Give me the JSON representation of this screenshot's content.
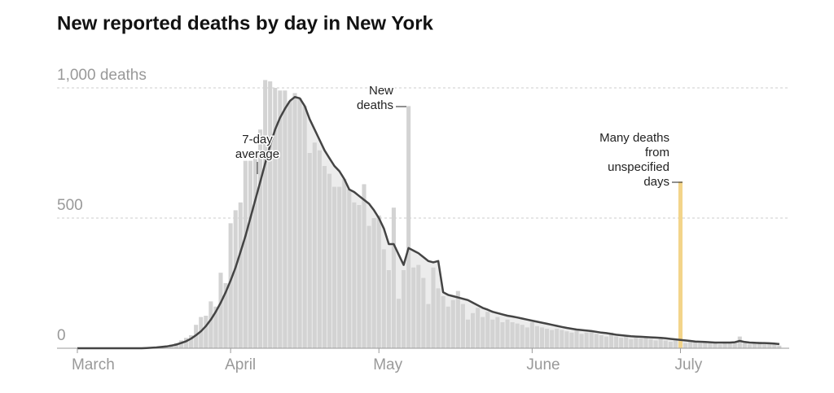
{
  "chart_data": {
    "type": "bar-line",
    "title": "New reported deaths by day in New York",
    "x": [
      0,
      1,
      2,
      3,
      4,
      5,
      6,
      7,
      8,
      9,
      10,
      11,
      12,
      13,
      14,
      15,
      16,
      17,
      18,
      19,
      20,
      21,
      22,
      23,
      24,
      25,
      26,
      27,
      28,
      29,
      30,
      31,
      32,
      33,
      34,
      35,
      36,
      37,
      38,
      39,
      40,
      41,
      42,
      43,
      44,
      45,
      46,
      47,
      48,
      49,
      50,
      51,
      52,
      53,
      54,
      55,
      56,
      57,
      58,
      59,
      60,
      61,
      62,
      63,
      64,
      65,
      66,
      67,
      68,
      69,
      70,
      71,
      72,
      73,
      74,
      75,
      76,
      77,
      78,
      79,
      80,
      81,
      82,
      83,
      84,
      85,
      86,
      87,
      88,
      89,
      90,
      91,
      92,
      93,
      94,
      95,
      96,
      97,
      98,
      99,
      100,
      101,
      102,
      103,
      104,
      105,
      106,
      107,
      108,
      109,
      110,
      111,
      112,
      113,
      114,
      115,
      116,
      117,
      118,
      119,
      120,
      121,
      122,
      123,
      124,
      125,
      126,
      127,
      128,
      129,
      130,
      131,
      132,
      133,
      134,
      135,
      136,
      137,
      138,
      139,
      140,
      141,
      142
    ],
    "xlim": [
      -4,
      144
    ],
    "xticks": [
      {
        "value": 0,
        "label": "March"
      },
      {
        "value": 31,
        "label": "April"
      },
      {
        "value": 61,
        "label": "May"
      },
      {
        "value": 92,
        "label": "June"
      },
      {
        "value": 122,
        "label": "July"
      }
    ],
    "ylim": [
      0,
      1000
    ],
    "yticks": [
      {
        "value": 0,
        "label": "0"
      },
      {
        "value": 500,
        "label": "500"
      },
      {
        "value": 1000,
        "label": "1,000 deaths"
      }
    ],
    "grid": true,
    "series": [
      {
        "type": "bar",
        "color": "#d3d3d3",
        "area_color": "#ececec",
        "values": [
          0,
          0,
          0,
          0,
          0,
          0,
          0,
          0,
          0,
          0,
          0,
          0,
          0,
          0,
          0,
          2,
          3,
          5,
          10,
          15,
          20,
          30,
          40,
          50,
          90,
          120,
          125,
          180,
          160,
          290,
          250,
          480,
          530,
          560,
          720,
          720,
          740,
          840,
          1030,
          1025,
          1000,
          990,
          990,
          950,
          980,
          960,
          930,
          750,
          790,
          760,
          700,
          670,
          620,
          620,
          650,
          610,
          560,
          550,
          630,
          470,
          500,
          510,
          380,
          300,
          540,
          190,
          300,
          930,
          310,
          320,
          270,
          170,
          310,
          230,
          200,
          160,
          185,
          220,
          170,
          110,
          135,
          155,
          120,
          140,
          110,
          120,
          100,
          110,
          100,
          95,
          90,
          80,
          100,
          85,
          80,
          75,
          70,
          75,
          70,
          65,
          60,
          70,
          55,
          60,
          65,
          55,
          50,
          45,
          60,
          45,
          40,
          45,
          35,
          40,
          38,
          45,
          35,
          30,
          40,
          30,
          25,
          30,
          640,
          20,
          30,
          25,
          20,
          25,
          20,
          25,
          15,
          25,
          20,
          25,
          45,
          20,
          15,
          20,
          25,
          15,
          20,
          15,
          10
        ]
      },
      {
        "type": "line",
        "color": "#444444",
        "values": [
          0,
          0,
          0,
          0,
          0,
          0,
          0,
          0,
          0,
          0,
          0,
          0,
          0,
          0,
          1,
          2,
          3,
          5,
          7,
          10,
          14,
          20,
          27,
          37,
          50,
          65,
          85,
          110,
          140,
          175,
          215,
          260,
          310,
          370,
          430,
          500,
          570,
          640,
          710,
          780,
          840,
          885,
          920,
          950,
          965,
          960,
          930,
          880,
          840,
          800,
          760,
          730,
          700,
          680,
          650,
          610,
          600,
          585,
          570,
          555,
          530,
          500,
          460,
          400,
          400,
          360,
          320,
          385,
          375,
          365,
          350,
          335,
          330,
          335,
          215,
          205,
          200,
          195,
          190,
          185,
          175,
          165,
          155,
          148,
          140,
          135,
          130,
          125,
          122,
          118,
          114,
          110,
          106,
          102,
          98,
          94,
          90,
          86,
          82,
          78,
          75,
          72,
          70,
          68,
          66,
          63,
          60,
          58,
          55,
          52,
          50,
          48,
          46,
          45,
          44,
          43,
          42,
          41,
          40,
          38,
          36,
          34,
          32,
          30,
          28,
          26,
          25,
          24,
          23,
          22,
          22,
          22,
          22,
          23,
          28,
          24,
          22,
          21,
          20,
          20,
          19,
          18,
          16
        ]
      }
    ],
    "annotations": [
      {
        "lines": [
          "7-day",
          "average"
        ],
        "x": 36
      },
      {
        "lines": [
          "New",
          "deaths"
        ],
        "x": 67
      },
      {
        "lines": [
          "Many deaths",
          "from",
          "unspecified",
          "days"
        ],
        "x": 122,
        "color": "#f3d48a"
      }
    ]
  }
}
